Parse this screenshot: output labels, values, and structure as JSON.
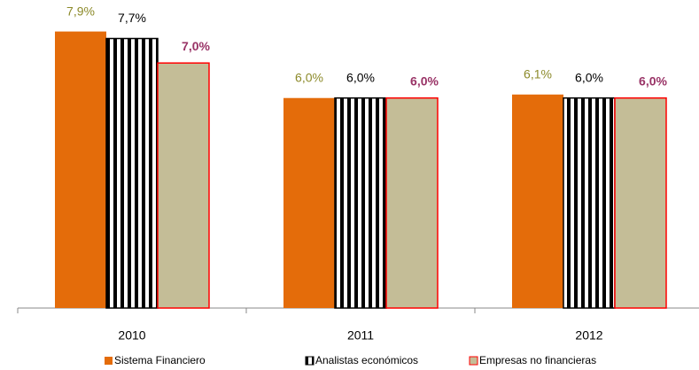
{
  "chart_data": {
    "type": "bar",
    "categories": [
      "2010",
      "2011",
      "2012"
    ],
    "series": [
      {
        "name": "Sistema Financiero",
        "color": "#e46c0a",
        "label_color": "#8c8a2a",
        "values": [
          7.9,
          6.0,
          6.1
        ],
        "value_labels": [
          "7,9%",
          "6,0%",
          "6,1%"
        ]
      },
      {
        "name": "Analistas económicos",
        "color": "#000000",
        "label_color": "#000000",
        "values": [
          7.7,
          6.0,
          6.0
        ],
        "value_labels": [
          "7,7%",
          "6,0%",
          "6,0%"
        ]
      },
      {
        "name": "Empresas no financieras",
        "color": "#c4bd97",
        "border": "#ff0000",
        "label_color": "#993366",
        "values": [
          7.0,
          6.0,
          6.0
        ],
        "value_labels": [
          "7,0%",
          "6,0%",
          "6,0%"
        ]
      }
    ],
    "ylim": [
      0,
      8.8
    ]
  }
}
